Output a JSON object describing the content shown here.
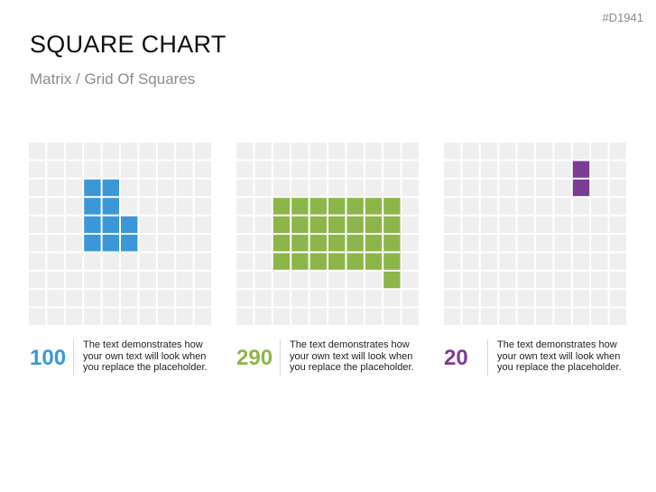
{
  "badge": "#D1941",
  "title": "SQUARE CHART",
  "subtitle": "Matrix / Grid Of Squares",
  "chart_data": [
    {
      "type": "heatmap",
      "rows": 10,
      "cols": 10,
      "value": 100,
      "color": "#3a98d8",
      "filled": [
        [
          2,
          3
        ],
        [
          2,
          4
        ],
        [
          3,
          3
        ],
        [
          3,
          4
        ],
        [
          4,
          3
        ],
        [
          4,
          4
        ],
        [
          4,
          5
        ],
        [
          5,
          3
        ],
        [
          5,
          4
        ],
        [
          5,
          5
        ]
      ],
      "value_label": "100",
      "description": "The text demonstrates how\nyour own text will look when\nyou replace the placeholder."
    },
    {
      "type": "heatmap",
      "rows": 10,
      "cols": 10,
      "value": 290,
      "color": "#8db64a",
      "filled": [
        [
          3,
          2
        ],
        [
          3,
          3
        ],
        [
          3,
          4
        ],
        [
          3,
          5
        ],
        [
          3,
          6
        ],
        [
          3,
          7
        ],
        [
          3,
          8
        ],
        [
          4,
          2
        ],
        [
          4,
          3
        ],
        [
          4,
          4
        ],
        [
          4,
          5
        ],
        [
          4,
          6
        ],
        [
          4,
          7
        ],
        [
          4,
          8
        ],
        [
          5,
          2
        ],
        [
          5,
          3
        ],
        [
          5,
          4
        ],
        [
          5,
          5
        ],
        [
          5,
          6
        ],
        [
          5,
          7
        ],
        [
          5,
          8
        ],
        [
          6,
          2
        ],
        [
          6,
          3
        ],
        [
          6,
          4
        ],
        [
          6,
          5
        ],
        [
          6,
          6
        ],
        [
          6,
          7
        ],
        [
          6,
          8
        ],
        [
          7,
          8
        ]
      ],
      "value_label": "290",
      "description": "The text demonstrates how\nyour own text will look when\nyou replace the placeholder."
    },
    {
      "type": "heatmap",
      "rows": 10,
      "cols": 10,
      "value": 20,
      "color": "#7b3d93",
      "filled": [
        [
          1,
          7
        ],
        [
          2,
          7
        ]
      ],
      "value_label": "20",
      "description": "The text demonstrates how\nyour own text will look when\nyou replace the placeholder."
    }
  ]
}
